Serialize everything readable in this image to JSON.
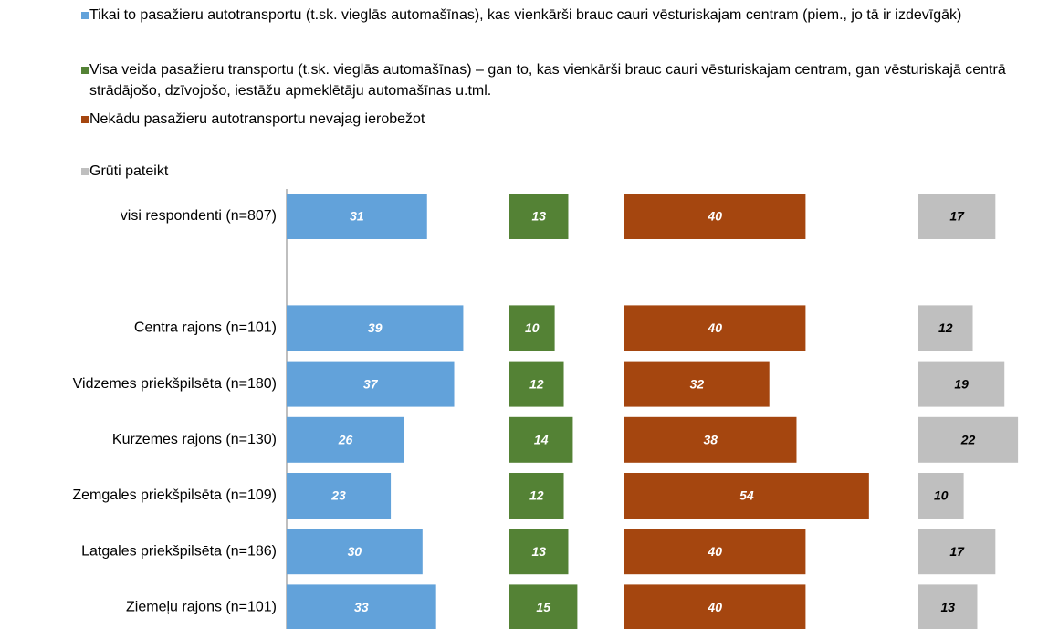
{
  "chart_data": {
    "type": "bar",
    "orientation": "horizontal",
    "categories": [
      "visi respondenti (n=807)",
      null,
      "Centra rajons (n=101)",
      "Vidzemes priekšpilsēta (n=180)",
      "Kurzemes rajons (n=130)",
      "Zemgales priekšpilsēta (n=109)",
      "Latgales priekšpilsēta (n=186)",
      "Ziemeļu rajons (n=101)"
    ],
    "series": [
      {
        "name": "Tikai to pasažieru autotransportu (t.sk. vieglās automašīnas), kas vienkārši brauc cauri vēsturiskajam centram (piem., jo tā ir izdevīgāk)",
        "color": "#62a2da",
        "label_color": "#ffffff",
        "values": [
          31,
          null,
          39,
          37,
          26,
          23,
          30,
          33
        ]
      },
      {
        "name": "Visa veida pasažieru transportu (t.sk. vieglās automašīnas) – gan to, kas vienkārši brauc cauri vēsturiskajam centram, gan vēsturiskajā centrā strādājošo, dzīvojošo, iestāžu apmeklētāju automašīnas u.tml.",
        "color": "#548235",
        "label_color": "#ffffff",
        "values": [
          13,
          null,
          10,
          12,
          14,
          12,
          13,
          15
        ]
      },
      {
        "name": "Nekādu pasažieru autotransportu nevajag ierobežot",
        "color": "#a5460f",
        "label_color": "#ffffff",
        "values": [
          40,
          null,
          40,
          32,
          38,
          54,
          40,
          40
        ]
      },
      {
        "name": "Grūti pateikt",
        "color": "#bfbfbf",
        "label_color": "#000000",
        "values": [
          17,
          null,
          12,
          19,
          22,
          10,
          17,
          13
        ]
      }
    ]
  }
}
